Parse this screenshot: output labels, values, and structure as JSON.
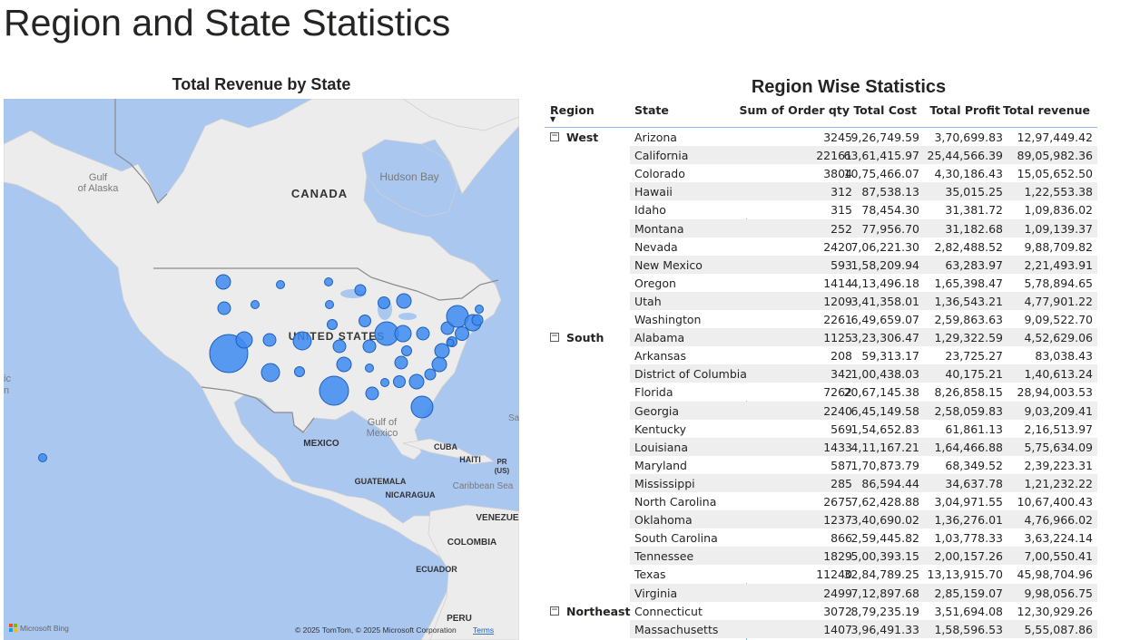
{
  "page": {
    "title": "Region and State Statistics"
  },
  "map_visual": {
    "title": "Total Revenue by State",
    "labels": {
      "canada": "CANADA",
      "united_states": "UNITED STATES",
      "mexico": "MEXICO",
      "cuba": "CUBA",
      "haiti": "HAITI",
      "pr": "PR",
      "pr_us": "(US)",
      "guatemala": "GUATEMALA",
      "nicaragua": "NICARAGUA",
      "caribbean_sea": "Caribbean Sea",
      "venezuela": "VENEZUE",
      "colombia": "COLOMBIA",
      "ecuador": "ECUADOR",
      "peru": "PERU",
      "gulf_of_alaska_1": "Gulf",
      "gulf_of_alaska_2": "of Alaska",
      "hudson_bay": "Hudson Bay",
      "gulf_of_mexico_1": "Gulf of",
      "gulf_of_mexico_2": "Mexico",
      "sa_edge": "Sa",
      "ic_edge": "ic",
      "n_edge": "n"
    },
    "attribution": "© 2025 TomTom, © 2025 Microsoft Corporation",
    "terms": "Terms",
    "bing": "Microsoft Bing",
    "colors": {
      "bubble": "#3d8bf2",
      "water": "#aac7f0",
      "land": "#ececec"
    }
  },
  "table_visual": {
    "title": "Region Wise Statistics",
    "columns": [
      "Region",
      "State",
      "Sum of Order qty",
      "Total Cost",
      "Total Profit",
      "Total revenue"
    ],
    "regions": [
      {
        "name": "West",
        "rows": [
          [
            "Arizona",
            "3245",
            "9,26,749.59",
            "3,70,699.83",
            "12,97,449.42"
          ],
          [
            "California",
            "22161",
            "63,61,415.97",
            "25,44,566.39",
            "89,05,982.36"
          ],
          [
            "Colorado",
            "3804",
            "10,75,466.07",
            "4,30,186.43",
            "15,05,652.50"
          ],
          [
            "Hawaii",
            "312",
            "87,538.13",
            "35,015.25",
            "1,22,553.38"
          ],
          [
            "Idaho",
            "315",
            "78,454.30",
            "31,381.72",
            "1,09,836.02"
          ],
          [
            "Montana",
            "252",
            "77,956.70",
            "31,182.68",
            "1,09,139.37"
          ],
          [
            "Nevada",
            "2420",
            "7,06,221.30",
            "2,82,488.52",
            "9,88,709.82"
          ],
          [
            "New Mexico",
            "593",
            "1,58,209.94",
            "63,283.97",
            "2,21,493.91"
          ],
          [
            "Oregon",
            "1414",
            "4,13,496.18",
            "1,65,398.47",
            "5,78,894.65"
          ],
          [
            "Utah",
            "1209",
            "3,41,358.01",
            "1,36,543.21",
            "4,77,901.22"
          ],
          [
            "Washington",
            "2261",
            "6,49,659.07",
            "2,59,863.63",
            "9,09,522.70"
          ]
        ]
      },
      {
        "name": "South",
        "rows": [
          [
            "Alabama",
            "1125",
            "3,23,306.47",
            "1,29,322.59",
            "4,52,629.06"
          ],
          [
            "Arkansas",
            "208",
            "59,313.17",
            "23,725.27",
            "83,038.43"
          ],
          [
            "District of Columbia",
            "342",
            "1,00,438.03",
            "40,175.21",
            "1,40,613.24"
          ],
          [
            "Florida",
            "7262",
            "20,67,145.38",
            "8,26,858.15",
            "28,94,003.53"
          ],
          [
            "Georgia",
            "2240",
            "6,45,149.58",
            "2,58,059.83",
            "9,03,209.41"
          ],
          [
            "Kentucky",
            "569",
            "1,54,652.83",
            "61,861.13",
            "2,16,513.97"
          ],
          [
            "Louisiana",
            "1433",
            "4,11,167.21",
            "1,64,466.88",
            "5,75,634.09"
          ],
          [
            "Maryland",
            "587",
            "1,70,873.79",
            "68,349.52",
            "2,39,223.31"
          ],
          [
            "Mississippi",
            "285",
            "86,594.44",
            "34,637.78",
            "1,21,232.22"
          ],
          [
            "North Carolina",
            "2675",
            "7,62,428.88",
            "3,04,971.55",
            "10,67,400.43"
          ],
          [
            "Oklahoma",
            "1237",
            "3,40,690.02",
            "1,36,276.01",
            "4,76,966.02"
          ],
          [
            "South Carolina",
            "866",
            "2,59,445.82",
            "1,03,778.33",
            "3,63,224.14"
          ],
          [
            "Tennessee",
            "1829",
            "5,00,393.15",
            "2,00,157.26",
            "7,00,550.41"
          ],
          [
            "Texas",
            "11240",
            "32,84,789.25",
            "13,13,915.70",
            "45,98,704.96"
          ],
          [
            "Virginia",
            "2499",
            "7,12,897.68",
            "2,85,159.07",
            "9,98,056.75"
          ]
        ]
      },
      {
        "name": "Northeast",
        "rows": [
          [
            "Connecticut",
            "3072",
            "8,79,235.19",
            "3,51,694.08",
            "12,30,929.26"
          ],
          [
            "Massachusetts",
            "1407",
            "3,96,491.33",
            "1,58,596.53",
            "5,55,087.86"
          ]
        ]
      }
    ]
  }
}
